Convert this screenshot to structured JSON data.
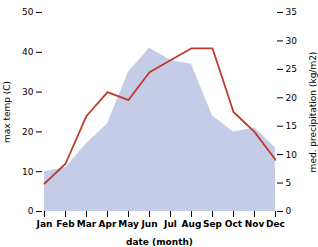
{
  "chart_data": {
    "type": "line",
    "categories": [
      "Jan",
      "Feb",
      "Mar",
      "Apr",
      "May",
      "Jun",
      "Jul",
      "Aug",
      "Sep",
      "Oct",
      "Nov",
      "Dec"
    ],
    "series": [
      {
        "type": "area",
        "color": "#c5cce8",
        "values": [
          10,
          11,
          17,
          22,
          35,
          41,
          38,
          37,
          24,
          20,
          21,
          16
        ]
      },
      {
        "type": "line",
        "color": "#c0392b",
        "values": [
          7,
          12,
          24,
          30,
          28,
          35,
          38,
          41,
          41,
          25,
          20,
          13
        ]
      }
    ],
    "xlabel": "date (month)",
    "ylabel": "max temp (C)",
    "y2label": "med. precipitation (kg/m2)",
    "ylim": [
      0,
      50
    ],
    "yticks": [
      0,
      10,
      20,
      30,
      40,
      50
    ],
    "y2lim": [
      0,
      35
    ],
    "y2ticks": [
      0,
      5,
      10,
      15,
      20,
      25,
      30,
      35
    ]
  }
}
